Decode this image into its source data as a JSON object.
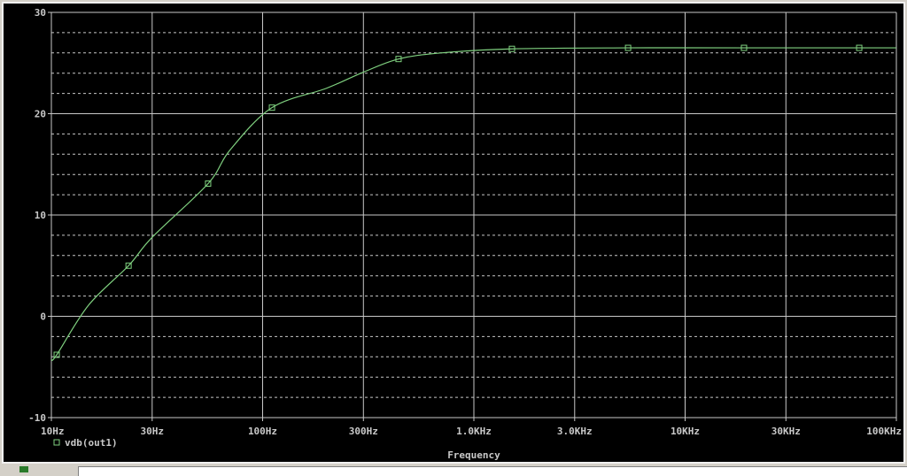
{
  "chart_data": {
    "type": "line",
    "xlabel": "Frequency",
    "ylabel": "",
    "x_scale": "log",
    "xlim": [
      10,
      100000
    ],
    "ylim": [
      -10,
      30
    ],
    "x_ticks": [
      10,
      30,
      100,
      300,
      1000,
      3000,
      10000,
      30000,
      100000
    ],
    "x_tick_labels": [
      "10Hz",
      "30Hz",
      "100Hz",
      "300Hz",
      "1.0KHz",
      "3.0KHz",
      "10KHz",
      "30KHz",
      "100KHz"
    ],
    "y_ticks": [
      -10,
      0,
      10,
      20,
      30
    ],
    "y_tick_labels": [
      "-10",
      "0",
      "10",
      "20",
      "30"
    ],
    "grid": true,
    "minor_y_grid_step": 2,
    "legend_placement": "bottom-left",
    "series": [
      {
        "name": "vdb(out1)",
        "color": "#7fd07f",
        "marker": "square",
        "x": [
          10,
          10.6,
          15,
          23.2,
          30,
          55.2,
          70,
          110.7,
          200,
          300,
          440,
          700,
          1514,
          5370,
          19000,
          66700,
          100000
        ],
        "y": [
          -4.3,
          -3.8,
          1.1,
          5.0,
          7.8,
          13.1,
          16.4,
          20.6,
          22.5,
          24.1,
          25.4,
          26.0,
          26.4,
          26.5,
          26.5,
          26.5,
          26.5
        ],
        "markers_x": [
          10.6,
          23.2,
          55.2,
          110.7,
          440,
          1514,
          5370,
          19000,
          66700
        ],
        "markers_y": [
          -3.8,
          5.0,
          13.1,
          20.6,
          25.4,
          26.4,
          26.5,
          26.5,
          26.5
        ]
      }
    ]
  },
  "colors": {
    "background": "#000000",
    "grid": "#c8c8c8",
    "trace": "#7fd07f",
    "text": "#c8c8c8"
  }
}
